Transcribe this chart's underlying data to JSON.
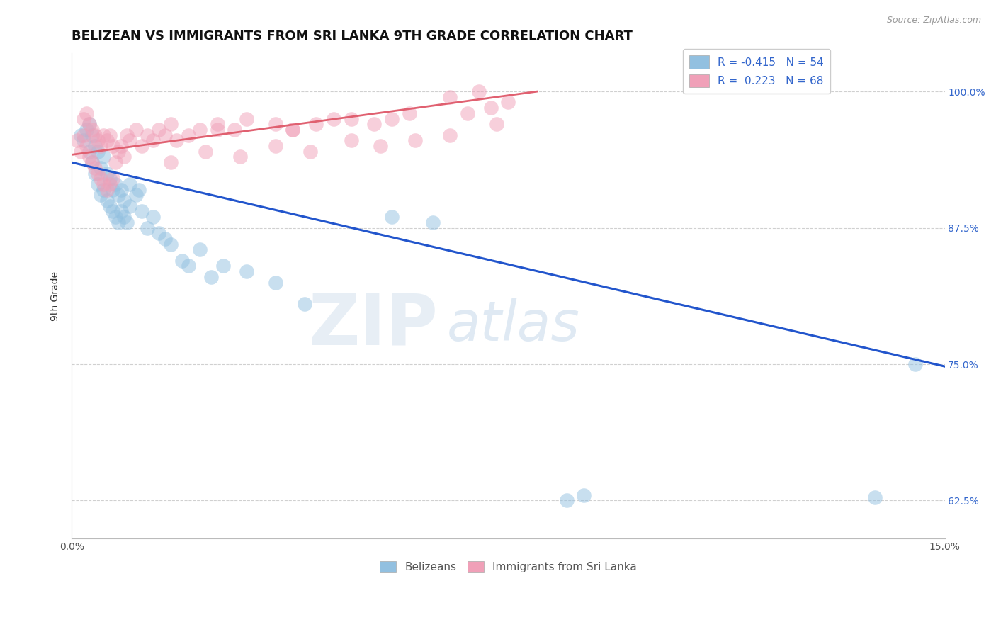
{
  "title": "BELIZEAN VS IMMIGRANTS FROM SRI LANKA 9TH GRADE CORRELATION CHART",
  "source_text": "Source: ZipAtlas.com",
  "ylabel": "9th Grade",
  "yticks": [
    62.5,
    75.0,
    87.5,
    100.0
  ],
  "ytick_labels": [
    "62.5%",
    "75.0%",
    "87.5%",
    "100.0%"
  ],
  "xlim": [
    0.0,
    15.0
  ],
  "ylim": [
    59.0,
    103.5
  ],
  "watermark_zip": "ZIP",
  "watermark_atlas": "atlas",
  "blue_color": "#92c0e0",
  "pink_color": "#f0a0b8",
  "blue_line_color": "#2255cc",
  "pink_line_color": "#e06070",
  "blue_scatter_x": [
    0.15,
    0.2,
    0.25,
    0.3,
    0.3,
    0.35,
    0.35,
    0.4,
    0.4,
    0.45,
    0.45,
    0.5,
    0.5,
    0.55,
    0.55,
    0.6,
    0.6,
    0.65,
    0.65,
    0.7,
    0.7,
    0.75,
    0.75,
    0.8,
    0.8,
    0.85,
    0.85,
    0.9,
    0.9,
    0.95,
    1.0,
    1.0,
    1.1,
    1.15,
    1.2,
    1.3,
    1.4,
    1.5,
    1.6,
    1.7,
    1.9,
    2.0,
    2.2,
    2.4,
    2.6,
    3.0,
    3.5,
    4.0,
    5.5,
    6.2,
    8.5,
    8.8,
    13.8,
    14.5
  ],
  "blue_scatter_y": [
    96.0,
    95.5,
    96.5,
    94.5,
    97.0,
    93.5,
    96.0,
    92.5,
    95.0,
    91.5,
    94.5,
    90.5,
    93.0,
    91.0,
    94.0,
    90.0,
    92.5,
    89.5,
    92.0,
    89.0,
    91.0,
    88.5,
    91.5,
    88.0,
    90.5,
    89.0,
    91.0,
    88.5,
    90.0,
    88.0,
    91.5,
    89.5,
    90.5,
    91.0,
    89.0,
    87.5,
    88.5,
    87.0,
    86.5,
    86.0,
    84.5,
    84.0,
    85.5,
    83.0,
    84.0,
    83.5,
    82.5,
    80.5,
    88.5,
    88.0,
    62.5,
    63.0,
    62.8,
    75.0
  ],
  "pink_scatter_x": [
    0.1,
    0.15,
    0.2,
    0.2,
    0.25,
    0.25,
    0.3,
    0.3,
    0.35,
    0.35,
    0.4,
    0.4,
    0.45,
    0.45,
    0.5,
    0.5,
    0.55,
    0.55,
    0.6,
    0.6,
    0.65,
    0.65,
    0.7,
    0.7,
    0.75,
    0.8,
    0.85,
    0.9,
    0.95,
    1.0,
    1.1,
    1.2,
    1.3,
    1.4,
    1.5,
    1.6,
    1.7,
    1.8,
    2.0,
    2.2,
    2.5,
    2.8,
    3.0,
    3.5,
    3.8,
    4.2,
    4.8,
    5.2,
    5.8,
    6.5,
    7.0,
    7.2,
    3.8,
    4.5,
    1.7,
    2.3,
    2.9,
    3.5,
    4.1,
    4.8,
    5.3,
    5.9,
    6.5,
    7.3,
    2.5,
    5.5,
    6.8,
    7.5
  ],
  "pink_scatter_y": [
    95.5,
    94.5,
    96.0,
    97.5,
    95.0,
    98.0,
    94.0,
    97.0,
    93.5,
    96.5,
    93.0,
    96.0,
    92.5,
    95.5,
    92.0,
    95.0,
    91.5,
    96.0,
    91.0,
    95.5,
    91.5,
    96.0,
    92.0,
    95.0,
    93.5,
    94.5,
    95.0,
    94.0,
    96.0,
    95.5,
    96.5,
    95.0,
    96.0,
    95.5,
    96.5,
    96.0,
    97.0,
    95.5,
    96.0,
    96.5,
    97.0,
    96.5,
    97.5,
    97.0,
    96.5,
    97.0,
    97.5,
    97.0,
    98.0,
    99.5,
    100.0,
    98.5,
    96.5,
    97.5,
    93.5,
    94.5,
    94.0,
    95.0,
    94.5,
    95.5,
    95.0,
    95.5,
    96.0,
    97.0,
    96.5,
    97.5,
    98.0,
    99.0
  ],
  "blue_line_x": [
    0.0,
    15.0
  ],
  "blue_line_y": [
    93.5,
    74.8
  ],
  "pink_line_x": [
    0.0,
    8.0
  ],
  "pink_line_y": [
    94.2,
    100.0
  ],
  "background_color": "#ffffff",
  "grid_color": "#d0d0d0",
  "title_fontsize": 13,
  "axis_label_fontsize": 10,
  "tick_fontsize": 10,
  "legend_upper": [
    {
      "label": "R = -0.415   N = 54",
      "color": "#92c0e0"
    },
    {
      "label": "R =  0.223   N = 68",
      "color": "#f0a0b8"
    }
  ]
}
